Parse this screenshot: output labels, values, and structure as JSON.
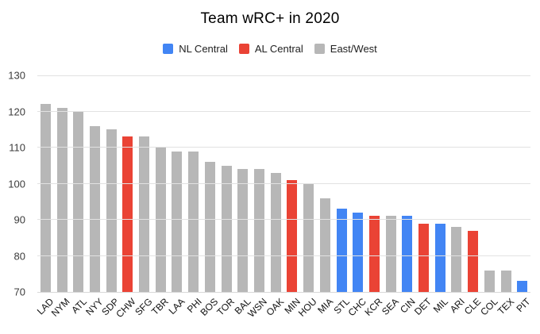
{
  "page": {
    "background": "#ffffff",
    "text_color": "#000000"
  },
  "chart_data": {
    "type": "bar",
    "title": "Team wRC+ in 2020",
    "xlabel": "",
    "ylabel": "",
    "ylim": [
      70,
      130
    ],
    "yticks": [
      70,
      80,
      90,
      100,
      110,
      120,
      130
    ],
    "grid": true,
    "legend_position": "top",
    "legend": [
      {
        "label": "NL Central",
        "color": "#4285F4"
      },
      {
        "label": "AL Central",
        "color": "#EA4335"
      },
      {
        "label": "East/West",
        "color": "#B7B7B7"
      }
    ],
    "categories": [
      "LAD",
      "NYM",
      "ATL",
      "NYY",
      "SDP",
      "CHW",
      "SFG",
      "TBR",
      "LAA",
      "PHI",
      "BOS",
      "TOR",
      "BAL",
      "WSN",
      "OAK",
      "MIN",
      "HOU",
      "MIA",
      "STL",
      "CHC",
      "KCR",
      "SEA",
      "CIN",
      "DET",
      "MIL",
      "ARI",
      "CLE",
      "COL",
      "TEX",
      "PIT"
    ],
    "values": [
      122,
      121,
      120,
      116,
      115,
      113,
      113,
      110,
      109,
      109,
      106,
      105,
      104,
      104,
      103,
      101,
      100,
      96,
      93,
      92,
      91,
      91,
      91,
      89,
      89,
      88,
      87,
      76,
      76,
      73
    ],
    "bar_groups": [
      "East/West",
      "East/West",
      "East/West",
      "East/West",
      "East/West",
      "AL Central",
      "East/West",
      "East/West",
      "East/West",
      "East/West",
      "East/West",
      "East/West",
      "East/West",
      "East/West",
      "East/West",
      "AL Central",
      "East/West",
      "East/West",
      "NL Central",
      "NL Central",
      "AL Central",
      "East/West",
      "NL Central",
      "AL Central",
      "NL Central",
      "East/West",
      "AL Central",
      "East/West",
      "East/West",
      "NL Central"
    ]
  }
}
